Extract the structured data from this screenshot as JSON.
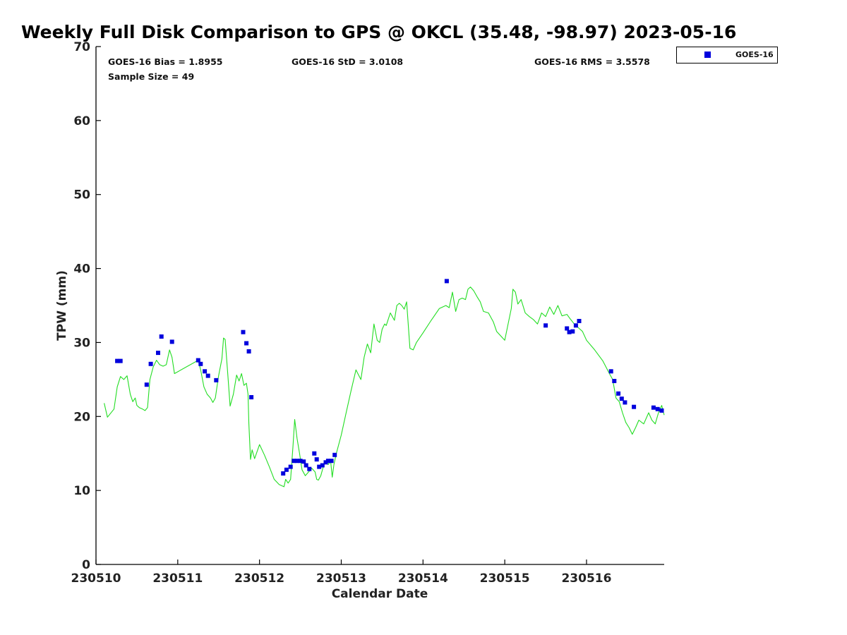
{
  "chart_data": {
    "type": "scatter",
    "title": "Weekly Full Disk Comparison to GPS @ OKCL (35.48, -98.97) 2023-05-16",
    "xlabel": "Calendar Date",
    "ylabel": "TPW (mm)",
    "xlim": [
      0,
      6.95
    ],
    "ylim": [
      0,
      70
    ],
    "x_ticks": [
      0,
      1,
      2,
      3,
      4,
      5,
      6
    ],
    "x_tick_labels": [
      "230510",
      "230511",
      "230512",
      "230513",
      "230514",
      "230515",
      "230516"
    ],
    "y_ticks": [
      0,
      10,
      20,
      30,
      40,
      50,
      60,
      70
    ],
    "y_tick_labels": [
      "0",
      "10",
      "20",
      "30",
      "40",
      "50",
      "60",
      "70"
    ],
    "stats": {
      "bias": "GOES-16 Bias = 1.8955",
      "std": "GOES-16 StD = 3.0108",
      "rms": "GOES-16 RMS = 3.5578",
      "sample": "Sample Size = 49"
    },
    "legend": {
      "label": "GOES-16",
      "position": "top-right-outside"
    },
    "series": [
      {
        "name": "GOES-16",
        "kind": "scatter",
        "color": "#0000dd",
        "x": [
          0.26,
          0.3,
          0.62,
          0.67,
          0.76,
          0.8,
          0.93,
          1.25,
          1.28,
          1.33,
          1.37,
          1.47,
          1.8,
          1.84,
          1.87,
          1.9,
          2.29,
          2.33,
          2.38,
          2.42,
          2.46,
          2.5,
          2.54,
          2.57,
          2.61,
          2.67,
          2.7,
          2.73,
          2.77,
          2.81,
          2.84,
          2.88,
          2.92,
          4.29,
          5.5,
          5.76,
          5.79,
          5.83,
          5.87,
          5.91,
          6.3,
          6.34,
          6.39,
          6.43,
          6.47,
          6.58,
          6.82,
          6.87,
          6.92
        ],
        "values": [
          27.5,
          27.5,
          24.3,
          27.1,
          28.6,
          30.8,
          30.1,
          27.6,
          27.1,
          26.1,
          25.5,
          24.9,
          31.4,
          29.9,
          28.8,
          22.6,
          12.3,
          12.8,
          13.2,
          14.0,
          14.0,
          14.0,
          13.9,
          13.4,
          12.9,
          15.0,
          14.2,
          13.2,
          13.4,
          13.8,
          14.0,
          14.0,
          14.8,
          38.3,
          32.3,
          31.9,
          31.4,
          31.5,
          32.3,
          32.9,
          26.1,
          24.8,
          23.1,
          22.4,
          21.9,
          21.3,
          21.2,
          21.0,
          20.8
        ]
      },
      {
        "name": "GPS",
        "kind": "line",
        "color": "#22dd22",
        "x": [
          0.1,
          0.14,
          0.22,
          0.26,
          0.3,
          0.34,
          0.38,
          0.42,
          0.45,
          0.48,
          0.5,
          0.53,
          0.57,
          0.6,
          0.63,
          0.66,
          0.7,
          0.74,
          0.78,
          0.82,
          0.86,
          0.9,
          0.93,
          0.96,
          1.25,
          1.28,
          1.32,
          1.36,
          1.4,
          1.43,
          1.46,
          1.5,
          1.54,
          1.56,
          1.58,
          1.61,
          1.64,
          1.68,
          1.72,
          1.75,
          1.78,
          1.81,
          1.84,
          1.86,
          1.87,
          1.89,
          1.91,
          1.94,
          2.0,
          2.06,
          2.12,
          2.18,
          2.24,
          2.3,
          2.32,
          2.35,
          2.38,
          2.41,
          2.43,
          2.46,
          2.49,
          2.52,
          2.56,
          2.6,
          2.64,
          2.68,
          2.7,
          2.72,
          2.75,
          2.78,
          2.81,
          2.84,
          2.87,
          2.89,
          2.91,
          2.94,
          3.0,
          3.06,
          3.12,
          3.18,
          3.24,
          3.28,
          3.32,
          3.36,
          3.4,
          3.44,
          3.47,
          3.5,
          3.53,
          3.55,
          3.6,
          3.65,
          3.68,
          3.71,
          3.74,
          3.77,
          3.8,
          3.84,
          3.88,
          3.92,
          4.0,
          4.1,
          4.2,
          4.28,
          4.32,
          4.36,
          4.4,
          4.44,
          4.48,
          4.52,
          4.55,
          4.58,
          4.62,
          4.66,
          4.7,
          4.74,
          4.8,
          4.86,
          4.9,
          5.0,
          5.08,
          5.1,
          5.13,
          5.16,
          5.2,
          5.25,
          5.3,
          5.35,
          5.4,
          5.45,
          5.5,
          5.55,
          5.6,
          5.65,
          5.7,
          5.76,
          5.8,
          5.85,
          5.9,
          5.95,
          6.0,
          6.1,
          6.2,
          6.28,
          6.32,
          6.36,
          6.4,
          6.44,
          6.48,
          6.52,
          6.56,
          6.6,
          6.64,
          6.7,
          6.76,
          6.8,
          6.84,
          6.88,
          6.92,
          6.95
        ],
        "values": [
          21.8,
          19.9,
          21.0,
          24.0,
          25.4,
          25.0,
          25.5,
          23.0,
          22.0,
          22.5,
          21.5,
          21.2,
          21.0,
          20.8,
          21.2,
          25.0,
          26.7,
          27.6,
          27.0,
          26.8,
          27.0,
          29.0,
          28.0,
          25.8,
          27.6,
          26.3,
          24.0,
          23.0,
          22.5,
          21.9,
          22.5,
          25.5,
          27.8,
          30.6,
          30.4,
          26.0,
          21.4,
          23.0,
          25.6,
          24.8,
          25.8,
          24.2,
          24.5,
          23.0,
          19.0,
          14.2,
          15.5,
          14.3,
          16.2,
          14.8,
          13.2,
          11.5,
          10.8,
          10.5,
          11.5,
          11.0,
          11.5,
          16.0,
          19.6,
          17.0,
          15.0,
          12.8,
          12.0,
          12.5,
          13.0,
          12.5,
          11.5,
          11.4,
          12.0,
          13.2,
          14.0,
          13.5,
          14.0,
          11.8,
          13.5,
          15.0,
          17.5,
          20.5,
          23.5,
          26.3,
          25.0,
          28.0,
          29.8,
          28.6,
          32.5,
          30.3,
          30.0,
          31.8,
          32.5,
          32.3,
          34.0,
          33.0,
          35.0,
          35.3,
          35.0,
          34.5,
          35.5,
          29.2,
          29.0,
          30.0,
          31.3,
          33.0,
          34.6,
          35.0,
          34.7,
          36.8,
          34.2,
          35.8,
          36.0,
          35.8,
          37.2,
          37.5,
          37.0,
          36.2,
          35.5,
          34.2,
          34.0,
          32.8,
          31.5,
          30.3,
          34.6,
          37.2,
          36.8,
          35.2,
          35.8,
          34.0,
          33.5,
          33.1,
          32.5,
          34.0,
          33.5,
          34.8,
          33.8,
          35.0,
          33.6,
          33.8,
          33.2,
          32.5,
          32.0,
          31.5,
          30.3,
          29.0,
          27.5,
          25.8,
          25.0,
          22.5,
          22.0,
          20.5,
          19.2,
          18.5,
          17.6,
          18.5,
          19.5,
          19.0,
          20.5,
          19.5,
          19.0,
          20.5,
          21.5,
          20.2
        ]
      }
    ]
  }
}
